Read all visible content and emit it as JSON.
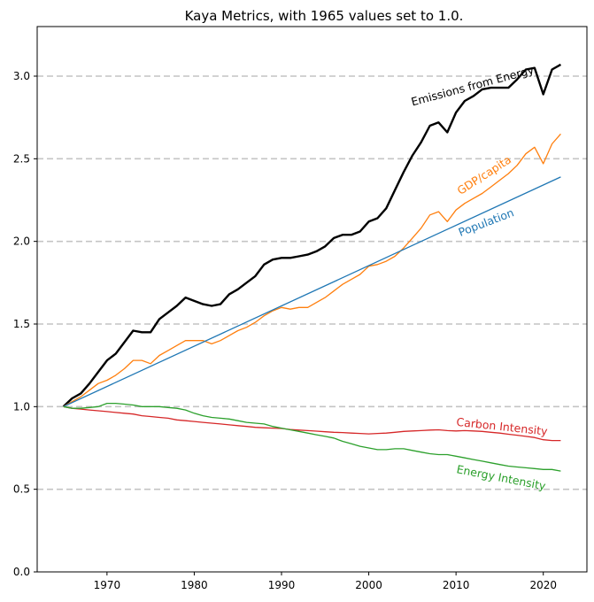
{
  "chart_data": {
    "type": "line",
    "title": "Kaya Metrics, with 1965 values set to 1.0.",
    "xlabel": "",
    "ylabel": "",
    "xlim": [
      1962,
      2025
    ],
    "ylim": [
      0,
      3.3
    ],
    "xticks": [
      "1970",
      "1980",
      "1990",
      "2000",
      "2010",
      "2020"
    ],
    "yticks": [
      "0.0",
      "0.5",
      "1.0",
      "1.5",
      "2.0",
      "2.5",
      "3.0"
    ],
    "grid": "horizontal dashed at y ticks 0.5–3.0",
    "series": [
      {
        "name": "Emissions from Energy",
        "color": "#000000",
        "label_angle": -15,
        "label_at": [
          2005,
          2.82
        ],
        "x": [
          1965,
          1966,
          1967,
          1968,
          1969,
          1970,
          1971,
          1972,
          1973,
          1974,
          1975,
          1976,
          1977,
          1978,
          1979,
          1980,
          1981,
          1982,
          1983,
          1984,
          1985,
          1986,
          1987,
          1988,
          1989,
          1990,
          1991,
          1992,
          1993,
          1994,
          1995,
          1996,
          1997,
          1998,
          1999,
          2000,
          2001,
          2002,
          2003,
          2004,
          2005,
          2006,
          2007,
          2008,
          2009,
          2010,
          2011,
          2012,
          2013,
          2014,
          2015,
          2016,
          2017,
          2018,
          2019,
          2020,
          2021,
          2022
        ],
        "y": [
          1.0,
          1.05,
          1.08,
          1.14,
          1.21,
          1.28,
          1.32,
          1.39,
          1.46,
          1.45,
          1.45,
          1.53,
          1.57,
          1.61,
          1.66,
          1.64,
          1.62,
          1.61,
          1.62,
          1.68,
          1.71,
          1.75,
          1.79,
          1.86,
          1.89,
          1.9,
          1.9,
          1.91,
          1.92,
          1.94,
          1.97,
          2.02,
          2.04,
          2.04,
          2.06,
          2.12,
          2.14,
          2.2,
          2.31,
          2.42,
          2.52,
          2.6,
          2.7,
          2.72,
          2.66,
          2.78,
          2.85,
          2.88,
          2.92,
          2.93,
          2.93,
          2.93,
          2.98,
          3.04,
          3.05,
          2.89,
          3.04,
          3.07
        ]
      },
      {
        "name": "GDP/capita",
        "color": "#ff7f0e",
        "label_angle": -33,
        "label_at": [
          2010.5,
          2.28
        ],
        "x": [
          1965,
          1966,
          1967,
          1968,
          1969,
          1970,
          1971,
          1972,
          1973,
          1974,
          1975,
          1976,
          1977,
          1978,
          1979,
          1980,
          1981,
          1982,
          1983,
          1984,
          1985,
          1986,
          1987,
          1988,
          1989,
          1990,
          1991,
          1992,
          1993,
          1994,
          1995,
          1996,
          1997,
          1998,
          1999,
          2000,
          2001,
          2002,
          2003,
          2004,
          2005,
          2006,
          2007,
          2008,
          2009,
          2010,
          2011,
          2012,
          2013,
          2014,
          2015,
          2016,
          2017,
          2018,
          2019,
          2020,
          2021,
          2022
        ],
        "y": [
          1.0,
          1.03,
          1.06,
          1.1,
          1.14,
          1.16,
          1.19,
          1.23,
          1.28,
          1.28,
          1.26,
          1.31,
          1.34,
          1.37,
          1.4,
          1.4,
          1.4,
          1.38,
          1.4,
          1.43,
          1.46,
          1.48,
          1.51,
          1.55,
          1.58,
          1.6,
          1.59,
          1.6,
          1.6,
          1.63,
          1.66,
          1.7,
          1.74,
          1.77,
          1.8,
          1.85,
          1.86,
          1.88,
          1.91,
          1.96,
          2.02,
          2.08,
          2.16,
          2.18,
          2.12,
          2.19,
          2.23,
          2.26,
          2.29,
          2.33,
          2.37,
          2.41,
          2.46,
          2.53,
          2.57,
          2.47,
          2.59,
          2.65
        ]
      },
      {
        "name": "Population",
        "color": "#1f77b4",
        "label_angle": -21,
        "label_at": [
          2010.5,
          2.03
        ],
        "x": [
          1965,
          2022
        ],
        "y": [
          1.0,
          2.39
        ]
      },
      {
        "name": "Carbon Intensity",
        "color": "#d62728",
        "label_angle": 6,
        "label_at": [
          2010,
          0.885
        ],
        "x": [
          1965,
          1966,
          1967,
          1968,
          1969,
          1970,
          1971,
          1972,
          1973,
          1974,
          1975,
          1976,
          1977,
          1978,
          1979,
          1980,
          1981,
          1982,
          1983,
          1984,
          1985,
          1986,
          1987,
          1988,
          1989,
          1990,
          1991,
          1992,
          1993,
          1994,
          1995,
          1996,
          1997,
          1998,
          1999,
          2000,
          2001,
          2002,
          2003,
          2004,
          2005,
          2006,
          2007,
          2008,
          2009,
          2010,
          2011,
          2012,
          2013,
          2014,
          2015,
          2016,
          2017,
          2018,
          2019,
          2020,
          2021,
          2022
        ],
        "y": [
          1.0,
          0.99,
          0.985,
          0.98,
          0.975,
          0.97,
          0.965,
          0.96,
          0.955,
          0.945,
          0.94,
          0.935,
          0.93,
          0.92,
          0.915,
          0.91,
          0.905,
          0.9,
          0.895,
          0.89,
          0.885,
          0.88,
          0.875,
          0.872,
          0.87,
          0.868,
          0.862,
          0.858,
          0.855,
          0.852,
          0.848,
          0.845,
          0.843,
          0.84,
          0.838,
          0.835,
          0.838,
          0.84,
          0.845,
          0.85,
          0.853,
          0.855,
          0.858,
          0.86,
          0.855,
          0.853,
          0.855,
          0.853,
          0.85,
          0.845,
          0.84,
          0.833,
          0.827,
          0.82,
          0.813,
          0.8,
          0.795,
          0.795
        ]
      },
      {
        "name": "Energy Intensity",
        "color": "#2ca02c",
        "label_angle": 11,
        "label_at": [
          2010,
          0.6
        ],
        "x": [
          1965,
          1966,
          1967,
          1968,
          1969,
          1970,
          1971,
          1972,
          1973,
          1974,
          1975,
          1976,
          1977,
          1978,
          1979,
          1980,
          1981,
          1982,
          1983,
          1984,
          1985,
          1986,
          1987,
          1988,
          1989,
          1990,
          1991,
          1992,
          1993,
          1994,
          1995,
          1996,
          1997,
          1998,
          1999,
          2000,
          2001,
          2002,
          2003,
          2004,
          2005,
          2006,
          2007,
          2008,
          2009,
          2010,
          2011,
          2012,
          2013,
          2014,
          2015,
          2016,
          2017,
          2018,
          2019,
          2020,
          2021,
          2022
        ],
        "y": [
          1.0,
          0.99,
          0.99,
          0.995,
          1.0,
          1.02,
          1.02,
          1.015,
          1.01,
          1.0,
          1.0,
          1.0,
          0.995,
          0.99,
          0.98,
          0.96,
          0.945,
          0.935,
          0.93,
          0.925,
          0.915,
          0.905,
          0.9,
          0.895,
          0.88,
          0.87,
          0.86,
          0.85,
          0.84,
          0.83,
          0.82,
          0.81,
          0.79,
          0.775,
          0.76,
          0.75,
          0.74,
          0.74,
          0.745,
          0.745,
          0.735,
          0.725,
          0.715,
          0.71,
          0.71,
          0.7,
          0.69,
          0.68,
          0.67,
          0.66,
          0.65,
          0.64,
          0.635,
          0.63,
          0.625,
          0.62,
          0.62,
          0.61
        ]
      }
    ]
  }
}
